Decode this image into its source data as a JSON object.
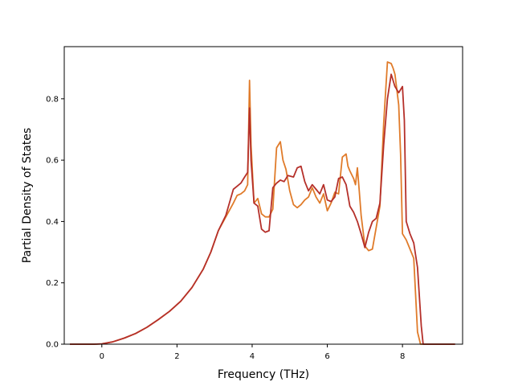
{
  "chart_data": {
    "type": "line",
    "xlabel": "Frequency (THz)",
    "ylabel": "Partial Density of States",
    "xlim": [
      -1.0,
      9.6
    ],
    "ylim": [
      0.0,
      0.97
    ],
    "xticks": [
      0,
      2,
      4,
      6,
      8
    ],
    "yticks": [
      0.0,
      0.2,
      0.4,
      0.6,
      0.8
    ],
    "xtick_labels": [
      "0",
      "2",
      "4",
      "6",
      "8"
    ],
    "ytick_labels": [
      "0.0",
      "0.2",
      "0.4",
      "0.6",
      "0.8"
    ],
    "grid": false,
    "legend": "none",
    "colors": {
      "series_0": "#e07b2a",
      "series_1": "#b5302a"
    },
    "series": [
      {
        "x": [
          -0.85,
          -0.2,
          0.0,
          0.3,
          0.6,
          0.9,
          1.2,
          1.5,
          1.8,
          2.1,
          2.4,
          2.7,
          2.9,
          3.1,
          3.3,
          3.5,
          3.6,
          3.7,
          3.8,
          3.88,
          3.93,
          3.97,
          4.05,
          4.15,
          4.25,
          4.35,
          4.45,
          4.55,
          4.65,
          4.75,
          4.82,
          4.9,
          5.0,
          5.1,
          5.2,
          5.3,
          5.4,
          5.5,
          5.6,
          5.7,
          5.8,
          5.9,
          6.0,
          6.1,
          6.2,
          6.3,
          6.4,
          6.5,
          6.55,
          6.6,
          6.7,
          6.75,
          6.8,
          6.85,
          6.9,
          7.0,
          7.1,
          7.2,
          7.3,
          7.4,
          7.5,
          7.6,
          7.7,
          7.75,
          7.8,
          7.9,
          7.95,
          8.0,
          8.1,
          8.2,
          8.3,
          8.4,
          8.48,
          8.55,
          8.6,
          9.0,
          9.4
        ],
        "y": [
          0.0,
          0.0,
          0.001,
          0.008,
          0.02,
          0.035,
          0.055,
          0.08,
          0.107,
          0.14,
          0.185,
          0.245,
          0.3,
          0.37,
          0.415,
          0.46,
          0.485,
          0.49,
          0.5,
          0.52,
          0.86,
          0.65,
          0.46,
          0.475,
          0.425,
          0.415,
          0.415,
          0.44,
          0.64,
          0.66,
          0.6,
          0.57,
          0.5,
          0.455,
          0.445,
          0.455,
          0.47,
          0.48,
          0.51,
          0.48,
          0.46,
          0.49,
          0.435,
          0.46,
          0.495,
          0.49,
          0.61,
          0.62,
          0.58,
          0.565,
          0.54,
          0.52,
          0.575,
          0.5,
          0.42,
          0.32,
          0.305,
          0.31,
          0.38,
          0.45,
          0.72,
          0.92,
          0.915,
          0.9,
          0.88,
          0.78,
          0.62,
          0.36,
          0.34,
          0.31,
          0.28,
          0.04,
          0.0,
          0.0,
          0.0,
          0.0,
          0.0
        ]
      },
      {
        "x": [
          -0.85,
          -0.2,
          0.0,
          0.3,
          0.6,
          0.9,
          1.2,
          1.5,
          1.8,
          2.1,
          2.4,
          2.7,
          2.9,
          3.1,
          3.3,
          3.5,
          3.6,
          3.7,
          3.8,
          3.88,
          3.93,
          3.97,
          4.05,
          4.15,
          4.25,
          4.35,
          4.45,
          4.55,
          4.65,
          4.75,
          4.85,
          4.95,
          5.1,
          5.2,
          5.3,
          5.4,
          5.5,
          5.6,
          5.7,
          5.8,
          5.9,
          6.0,
          6.1,
          6.2,
          6.3,
          6.4,
          6.5,
          6.6,
          6.7,
          6.8,
          6.9,
          7.0,
          7.1,
          7.2,
          7.3,
          7.4,
          7.5,
          7.6,
          7.7,
          7.8,
          7.9,
          8.0,
          8.05,
          8.1,
          8.2,
          8.3,
          8.4,
          8.5,
          8.55,
          8.6,
          9.0,
          9.4
        ],
        "y": [
          0.0,
          0.0,
          0.001,
          0.008,
          0.02,
          0.035,
          0.055,
          0.08,
          0.107,
          0.14,
          0.185,
          0.245,
          0.3,
          0.37,
          0.42,
          0.505,
          0.515,
          0.525,
          0.545,
          0.56,
          0.77,
          0.6,
          0.46,
          0.45,
          0.375,
          0.365,
          0.37,
          0.51,
          0.525,
          0.535,
          0.53,
          0.55,
          0.545,
          0.575,
          0.58,
          0.53,
          0.5,
          0.52,
          0.505,
          0.49,
          0.52,
          0.47,
          0.465,
          0.48,
          0.54,
          0.545,
          0.52,
          0.45,
          0.43,
          0.4,
          0.36,
          0.315,
          0.365,
          0.4,
          0.41,
          0.46,
          0.65,
          0.8,
          0.88,
          0.84,
          0.82,
          0.84,
          0.73,
          0.4,
          0.36,
          0.33,
          0.25,
          0.06,
          0.0,
          0.0,
          0.0,
          0.0
        ]
      }
    ]
  }
}
